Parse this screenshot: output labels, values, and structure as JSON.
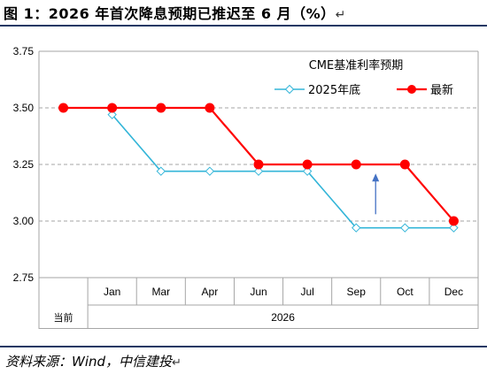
{
  "figure": {
    "title": "图 1：2026 年首次降息预期已推迟至 6 月（%）",
    "source": "资料来源：Wind，中信建投"
  },
  "chart_data": {
    "type": "line",
    "title": "CME基准利率预期",
    "categories": [
      "当前",
      "Jan",
      "Mar",
      "Apr",
      "Jun",
      "Jul",
      "Sep",
      "Oct",
      "Dec"
    ],
    "year_group": {
      "label": "2026",
      "categories": [
        "Jan",
        "Mar",
        "Apr",
        "Jun",
        "Jul",
        "Sep",
        "Oct",
        "Dec"
      ]
    },
    "ylim": [
      2.75,
      3.75
    ],
    "yticks": [
      "3.75",
      "3.50",
      "3.25",
      "3.00",
      "2.75"
    ],
    "ytick_values": [
      3.75,
      3.5,
      3.25,
      3.0,
      2.75
    ],
    "grid": "horizontal-dashed",
    "legend_placement": "top-right",
    "series": [
      {
        "name": "2025年底",
        "color": "#33b5d8",
        "marker": "diamond-open",
        "values": [
          null,
          3.47,
          3.22,
          3.22,
          3.22,
          3.22,
          2.97,
          2.97,
          2.97
        ]
      },
      {
        "name": "最新",
        "color": "#ff0000",
        "marker": "circle-filled",
        "values": [
          3.5,
          3.5,
          3.5,
          3.5,
          3.25,
          3.25,
          3.25,
          3.25,
          3.0
        ]
      }
    ],
    "annotation": {
      "type": "arrow-up",
      "color": "#4472c4",
      "category": "Sep"
    }
  }
}
